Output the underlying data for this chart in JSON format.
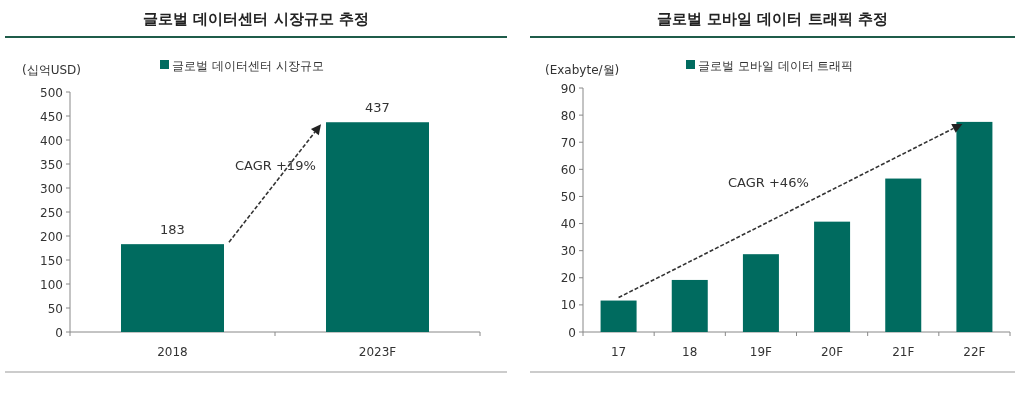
{
  "chart_data": [
    {
      "type": "bar",
      "title": "글로벌 데이터센터 시장규모 추정",
      "ylabel": "(십억USD)",
      "categories": [
        "2018",
        "2023F"
      ],
      "series": [
        {
          "name": "글로벌 데이터센터 시장규모",
          "color": "#006b5f",
          "values": [
            183,
            437
          ]
        }
      ],
      "ylim": [
        0,
        500
      ],
      "yticks": [
        0,
        50,
        100,
        150,
        200,
        250,
        300,
        350,
        400,
        450,
        500
      ],
      "data_labels": true,
      "grid": false,
      "legend": "top",
      "annotations": [
        "CAGR +19%"
      ]
    },
    {
      "type": "bar",
      "title": "글로벌 모바일 데이터 트래픽 추정",
      "ylabel": "(Exabyte/월)",
      "categories": [
        "17",
        "18",
        "19F",
        "20F",
        "21F",
        "22F"
      ],
      "series": [
        {
          "name": "글로벌 모바일 데이터 트래픽",
          "color": "#006b5f",
          "values": [
            11.6,
            19.2,
            28.7,
            40.7,
            56.6,
            77.5
          ]
        }
      ],
      "ylim": [
        0,
        90
      ],
      "yticks": [
        0,
        10,
        20,
        30,
        40,
        50,
        60,
        70,
        80,
        90
      ],
      "grid": false,
      "legend": "top",
      "annotations": [
        "CAGR +46%"
      ]
    }
  ]
}
